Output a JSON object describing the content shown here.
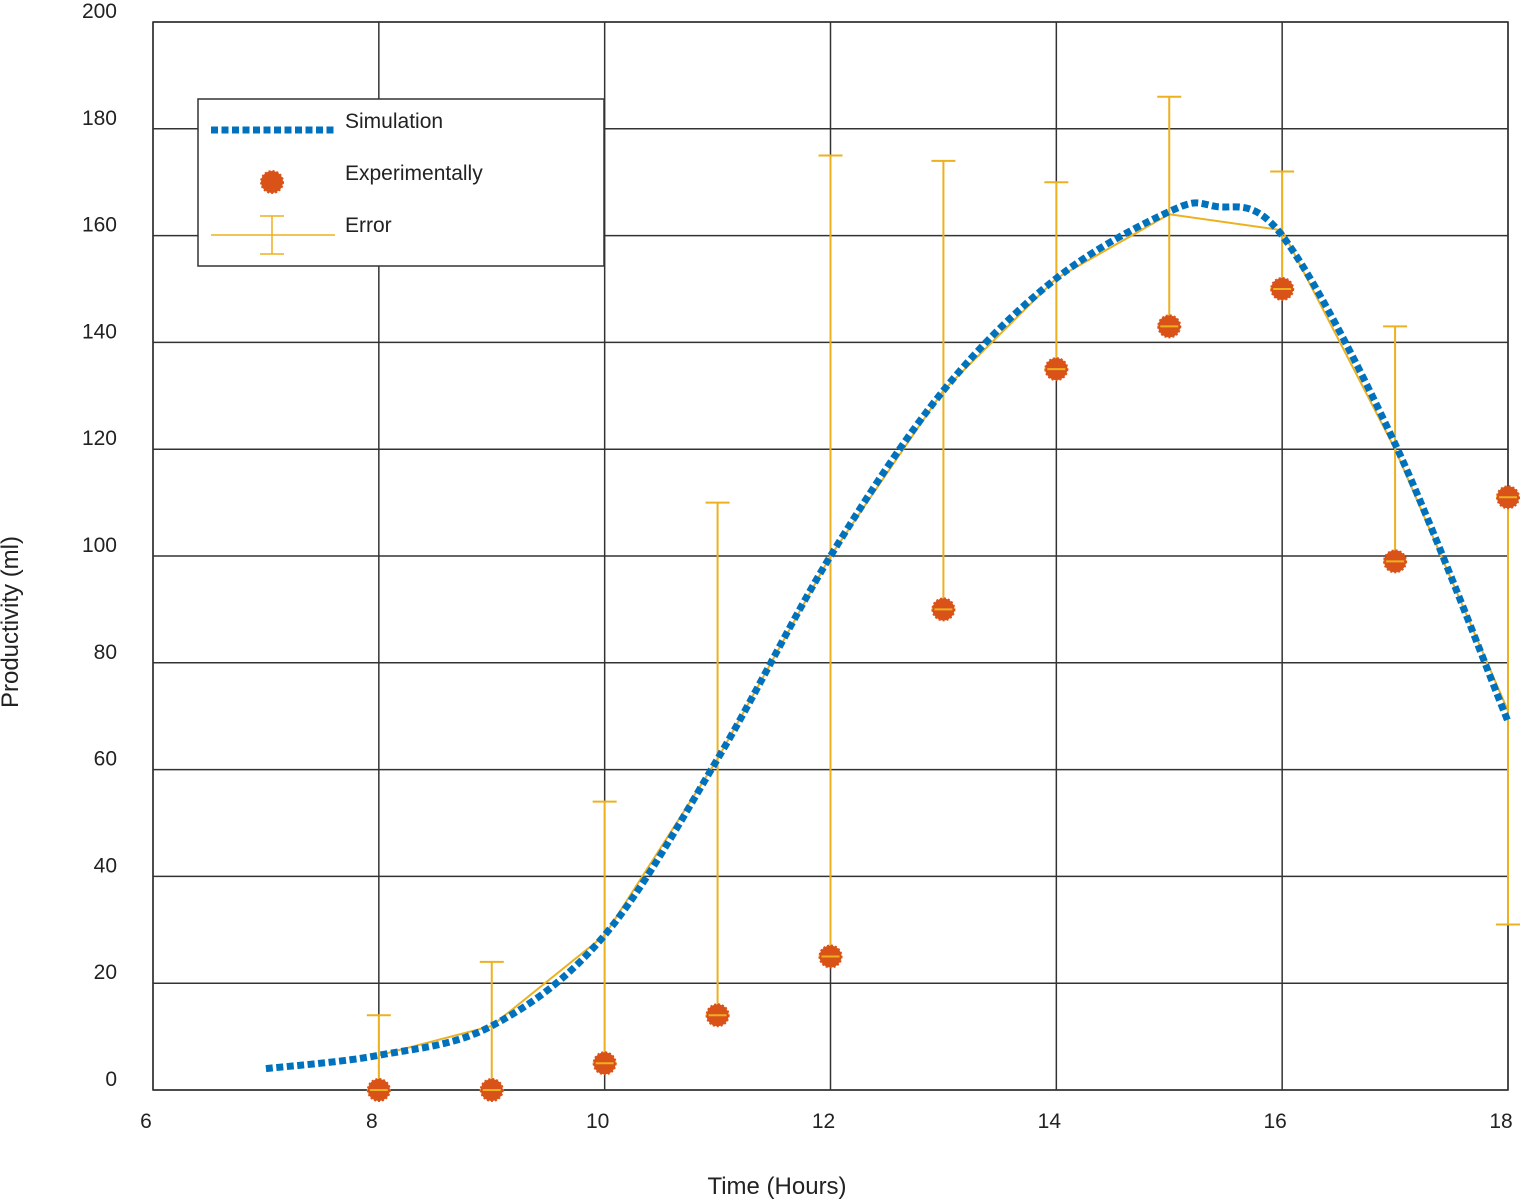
{
  "chart_data": {
    "type": "line",
    "title": "",
    "xlabel": "Time (Hours)",
    "ylabel": "Productivity (ml)",
    "xlim": [
      6,
      18
    ],
    "ylim": [
      0,
      200
    ],
    "xticks": [
      6,
      8,
      10,
      12,
      14,
      16,
      18
    ],
    "yticks": [
      0,
      20,
      40,
      60,
      80,
      100,
      120,
      140,
      160,
      180,
      200
    ],
    "grid": true,
    "legend_position": "top-left",
    "series": [
      {
        "name": "Simulation",
        "kind": "line",
        "style": "dotted",
        "color": "#0072BD",
        "x": [
          7,
          8,
          9,
          10,
          11,
          12,
          13,
          14,
          15,
          15.4,
          16,
          17,
          18
        ],
        "y": [
          4,
          6.5,
          12,
          29,
          62,
          100,
          131,
          152,
          164.5,
          165.5,
          160,
          121,
          69
        ]
      },
      {
        "name": "Experimentally",
        "kind": "scatter",
        "color": "#D95319",
        "x": [
          8,
          9,
          10,
          11,
          12,
          13,
          14,
          15,
          16,
          17,
          18
        ],
        "y": [
          0,
          0,
          5,
          14,
          25,
          90,
          135,
          143,
          150,
          99,
          111
        ]
      },
      {
        "name": "Error",
        "kind": "errorbar",
        "color": "#EDB120",
        "x": [
          8,
          9,
          10,
          11,
          12,
          13,
          14,
          15,
          16,
          17,
          18
        ],
        "y": [
          6.5,
          12,
          29,
          62,
          100,
          131,
          152,
          164,
          161,
          120,
          71
        ],
        "lower": [
          0,
          0,
          5,
          14,
          25,
          90,
          135,
          143,
          150,
          99,
          31
        ],
        "upper": [
          14,
          24,
          54,
          110,
          175,
          174,
          170,
          186,
          172,
          143,
          111
        ]
      }
    ]
  }
}
